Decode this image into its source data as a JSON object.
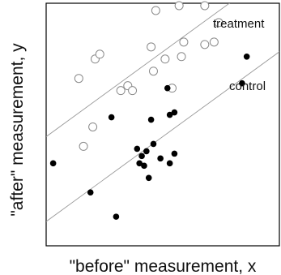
{
  "chart_data": {
    "type": "scatter",
    "title": "",
    "xlabel": "\"before\" measurement, x",
    "ylabel": "\"after\" measurement, y",
    "xlim": [
      0,
      100
    ],
    "ylim": [
      0,
      100
    ],
    "grid": false,
    "ticks": false,
    "series": [
      {
        "name": "treatment",
        "marker": "open-circle",
        "color": "#111111",
        "points": [
          [
            47,
            97
          ],
          [
            57,
            99
          ],
          [
            68,
            99
          ],
          [
            74,
            92
          ],
          [
            21,
            77
          ],
          [
            23,
            79
          ],
          [
            45,
            82
          ],
          [
            51,
            77
          ],
          [
            59,
            84
          ],
          [
            68,
            83
          ],
          [
            72,
            84
          ],
          [
            14,
            69
          ],
          [
            46,
            72
          ],
          [
            58,
            78
          ],
          [
            32,
            64
          ],
          [
            35,
            66
          ],
          [
            37,
            64
          ],
          [
            54,
            65
          ],
          [
            16,
            41
          ],
          [
            20,
            49
          ]
        ]
      },
      {
        "name": "control",
        "marker": "filled-circle",
        "color": "#000000",
        "points": [
          [
            86,
            78
          ],
          [
            84,
            67
          ],
          [
            52,
            65
          ],
          [
            53,
            54
          ],
          [
            55,
            55
          ],
          [
            45,
            52
          ],
          [
            28,
            53
          ],
          [
            55,
            38
          ],
          [
            39,
            40
          ],
          [
            43,
            39
          ],
          [
            46,
            42
          ],
          [
            41,
            37
          ],
          [
            40,
            34
          ],
          [
            42,
            33
          ],
          [
            49,
            36
          ],
          [
            53,
            34
          ],
          [
            44,
            28
          ],
          [
            3,
            34
          ],
          [
            19,
            22
          ],
          [
            30,
            12
          ]
        ]
      }
    ],
    "fit_lines": [
      {
        "name": "treatment",
        "from": [
          0,
          45
        ],
        "to": [
          100,
          115
        ]
      },
      {
        "name": "control",
        "from": [
          0,
          10
        ],
        "to": [
          100,
          80
        ]
      }
    ],
    "annotations": [
      "treatment",
      "control"
    ]
  },
  "colors": {
    "background": "#ffffff",
    "frame": "#000000",
    "fit_line": "#9a9a9a",
    "ink": "#111111"
  }
}
